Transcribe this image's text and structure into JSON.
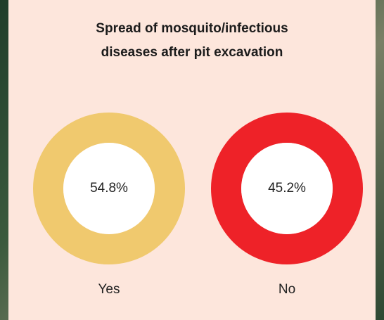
{
  "chart_data": {
    "type": "ring",
    "title": "Spread of mosquito/infectious diseases after pit excavation",
    "categories": [
      "Yes",
      "No"
    ],
    "values": [
      54.8,
      45.2
    ],
    "value_labels": [
      "54.8%",
      "45.2%"
    ],
    "colors": [
      "#f0c96e",
      "#ee2228"
    ]
  }
}
